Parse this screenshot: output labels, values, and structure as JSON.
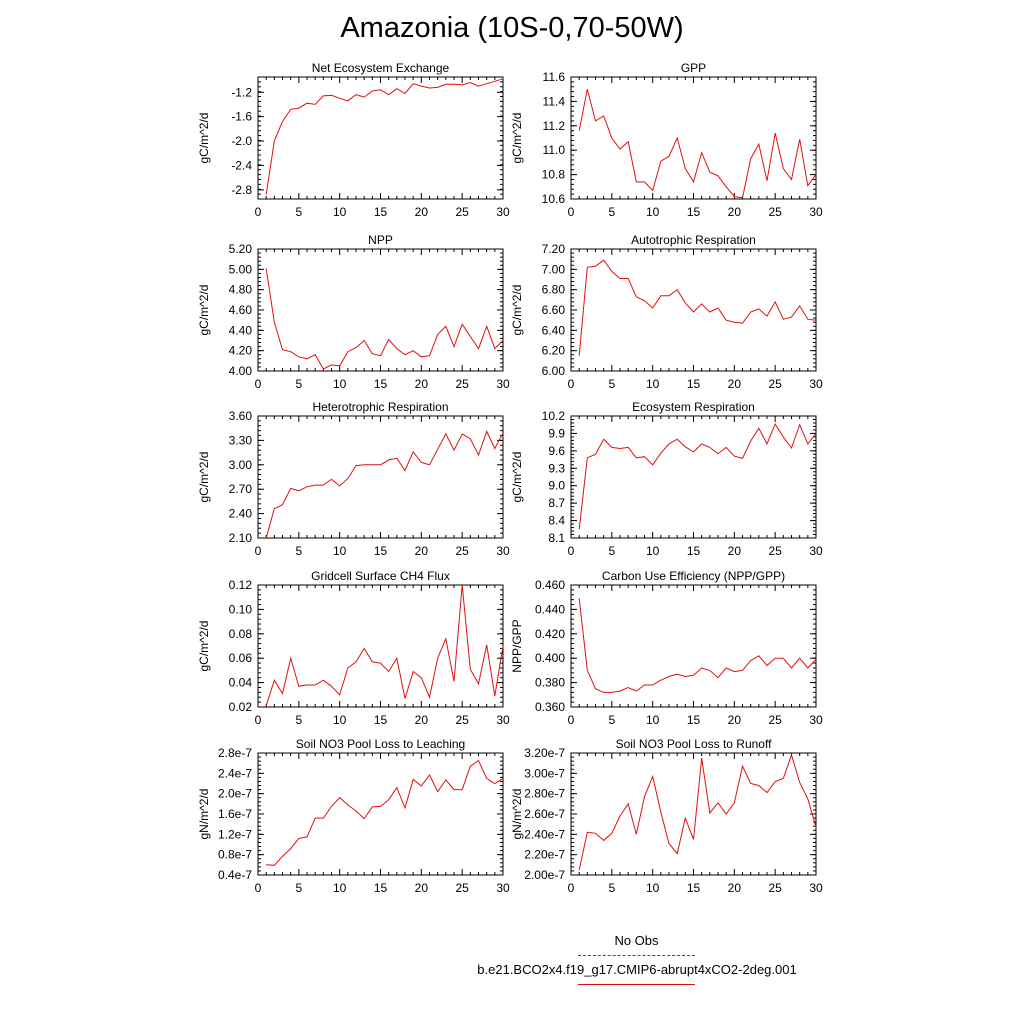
{
  "title": "Amazonia (10S-0,70-50W)",
  "legend": {
    "obs_label": "No Obs",
    "obs_color": "#3b3bd6",
    "case_label": "b.e21.BCO2x4.f19_g17.CMIP6-abrupt4xCO2-2deg.001",
    "case_color": "#e01010"
  },
  "chart_data": [
    {
      "type": "line",
      "title": "Net Ecosystem Exchange",
      "xlabel": "",
      "ylabel": "gC/m^2/d",
      "xlim": [
        0,
        30
      ],
      "ylim": [
        -2.95,
        -0.95
      ],
      "xticks": [
        0,
        5,
        10,
        15,
        20,
        25,
        30
      ],
      "yticks": [
        -2.8,
        -2.4,
        -2.0,
        -1.6,
        -1.2
      ],
      "ytick_labels": [
        "-2.8",
        "-2.4",
        "-2.0",
        "-1.6",
        "-1.2"
      ],
      "grid": false,
      "x": [
        1,
        2,
        3,
        4,
        5,
        6,
        7,
        8,
        9,
        10,
        11,
        12,
        13,
        14,
        15,
        16,
        17,
        18,
        19,
        20,
        21,
        22,
        23,
        24,
        25,
        26,
        27,
        28,
        29,
        30
      ],
      "series": [
        {
          "values": [
            -2.88,
            -2.0,
            -1.68,
            -1.48,
            -1.46,
            -1.38,
            -1.4,
            -1.26,
            -1.25,
            -1.3,
            -1.34,
            -1.24,
            -1.28,
            -1.18,
            -1.16,
            -1.24,
            -1.14,
            -1.22,
            -1.06,
            -1.1,
            -1.13,
            -1.12,
            -1.07,
            -1.07,
            -1.08,
            -1.04,
            -1.1,
            -1.06,
            -1.02,
            -0.98
          ]
        }
      ]
    },
    {
      "type": "line",
      "title": "GPP",
      "xlabel": "",
      "ylabel": "gC/m^2/d",
      "xlim": [
        0,
        30
      ],
      "ylim": [
        10.6,
        11.6
      ],
      "xticks": [
        0,
        5,
        10,
        15,
        20,
        25,
        30
      ],
      "yticks": [
        10.6,
        10.8,
        11.0,
        11.2,
        11.4,
        11.6
      ],
      "ytick_labels": [
        "10.6",
        "10.8",
        "11.0",
        "11.2",
        "11.4",
        "11.6"
      ],
      "grid": false,
      "x": [
        1,
        2,
        3,
        4,
        5,
        6,
        7,
        8,
        9,
        10,
        11,
        12,
        13,
        14,
        15,
        16,
        17,
        18,
        19,
        20,
        21,
        22,
        23,
        24,
        25,
        26,
        27,
        28,
        29,
        30
      ],
      "series": [
        {
          "values": [
            11.16,
            11.5,
            11.24,
            11.28,
            11.1,
            11.01,
            11.07,
            10.74,
            10.74,
            10.67,
            10.91,
            10.95,
            11.1,
            10.85,
            10.74,
            10.98,
            10.82,
            10.79,
            10.7,
            10.62,
            10.61,
            10.93,
            11.05,
            10.75,
            11.14,
            10.85,
            10.76,
            11.09,
            10.71,
            10.8
          ]
        }
      ]
    },
    {
      "type": "line",
      "title": "NPP",
      "xlabel": "",
      "ylabel": "gC/m^2/d",
      "xlim": [
        0,
        30
      ],
      "ylim": [
        4.0,
        5.2
      ],
      "xticks": [
        0,
        5,
        10,
        15,
        20,
        25,
        30
      ],
      "yticks": [
        4.0,
        4.2,
        4.4,
        4.6,
        4.8,
        5.0,
        5.2
      ],
      "ytick_labels": [
        "4.00",
        "4.20",
        "4.40",
        "4.60",
        "4.80",
        "5.00",
        "5.20"
      ],
      "grid": false,
      "x": [
        1,
        2,
        3,
        4,
        5,
        6,
        7,
        8,
        9,
        10,
        11,
        12,
        13,
        14,
        15,
        16,
        17,
        18,
        19,
        20,
        21,
        22,
        23,
        24,
        25,
        26,
        27,
        28,
        29,
        30
      ],
      "series": [
        {
          "values": [
            5.01,
            4.48,
            4.21,
            4.19,
            4.14,
            4.12,
            4.16,
            4.02,
            4.06,
            4.05,
            4.19,
            4.23,
            4.3,
            4.17,
            4.15,
            4.31,
            4.22,
            4.16,
            4.2,
            4.14,
            4.15,
            4.36,
            4.44,
            4.24,
            4.46,
            4.34,
            4.22,
            4.44,
            4.22,
            4.3
          ]
        }
      ]
    },
    {
      "type": "line",
      "title": "Autotrophic Respiration",
      "xlabel": "",
      "ylabel": "gC/m^2/d",
      "xlim": [
        0,
        30
      ],
      "ylim": [
        6.0,
        7.2
      ],
      "xticks": [
        0,
        5,
        10,
        15,
        20,
        25,
        30
      ],
      "yticks": [
        6.0,
        6.2,
        6.4,
        6.6,
        6.8,
        7.0,
        7.2
      ],
      "ytick_labels": [
        "6.00",
        "6.20",
        "6.40",
        "6.60",
        "6.80",
        "7.00",
        "7.20"
      ],
      "grid": false,
      "x": [
        1,
        2,
        3,
        4,
        5,
        6,
        7,
        8,
        9,
        10,
        11,
        12,
        13,
        14,
        15,
        16,
        17,
        18,
        19,
        20,
        21,
        22,
        23,
        24,
        25,
        26,
        27,
        28,
        29,
        30
      ],
      "series": [
        {
          "values": [
            6.15,
            7.02,
            7.03,
            7.09,
            6.98,
            6.91,
            6.91,
            6.73,
            6.69,
            6.62,
            6.74,
            6.74,
            6.8,
            6.67,
            6.58,
            6.66,
            6.58,
            6.62,
            6.5,
            6.48,
            6.47,
            6.58,
            6.61,
            6.54,
            6.68,
            6.51,
            6.53,
            6.64,
            6.51,
            6.5
          ]
        }
      ]
    },
    {
      "type": "line",
      "title": "Heterotrophic Respiration",
      "xlabel": "",
      "ylabel": "gC/m^2/d",
      "xlim": [
        0,
        30
      ],
      "ylim": [
        2.1,
        3.6
      ],
      "xticks": [
        0,
        5,
        10,
        15,
        20,
        25,
        30
      ],
      "yticks": [
        2.1,
        2.4,
        2.7,
        3.0,
        3.3,
        3.6
      ],
      "ytick_labels": [
        "2.10",
        "2.40",
        "2.70",
        "3.00",
        "3.30",
        "3.60"
      ],
      "grid": false,
      "x": [
        1,
        2,
        3,
        4,
        5,
        6,
        7,
        8,
        9,
        10,
        11,
        12,
        13,
        14,
        15,
        16,
        17,
        18,
        19,
        20,
        21,
        22,
        23,
        24,
        25,
        26,
        27,
        28,
        29,
        30
      ],
      "series": [
        {
          "values": [
            2.1,
            2.46,
            2.51,
            2.71,
            2.68,
            2.73,
            2.75,
            2.75,
            2.82,
            2.74,
            2.83,
            2.99,
            3.0,
            3.0,
            3.0,
            3.06,
            3.08,
            2.93,
            3.16,
            3.03,
            3.0,
            3.19,
            3.38,
            3.18,
            3.38,
            3.32,
            3.12,
            3.41,
            3.2,
            3.39
          ]
        }
      ]
    },
    {
      "type": "line",
      "title": "Ecosystem Respiration",
      "xlabel": "",
      "ylabel": "gC/m^2/d",
      "xlim": [
        0,
        30
      ],
      "ylim": [
        8.1,
        10.2
      ],
      "xticks": [
        0,
        5,
        10,
        15,
        20,
        25,
        30
      ],
      "yticks": [
        8.1,
        8.4,
        8.7,
        9.0,
        9.3,
        9.6,
        9.9,
        10.2
      ],
      "ytick_labels": [
        "8.1",
        "8.4",
        "8.7",
        "9.0",
        "9.3",
        "9.6",
        "9.9",
        "10.2"
      ],
      "grid": false,
      "x": [
        1,
        2,
        3,
        4,
        5,
        6,
        7,
        8,
        9,
        10,
        11,
        12,
        13,
        14,
        15,
        16,
        17,
        18,
        19,
        20,
        21,
        22,
        23,
        24,
        25,
        26,
        27,
        28,
        29,
        30
      ],
      "series": [
        {
          "values": [
            8.25,
            9.48,
            9.54,
            9.8,
            9.66,
            9.64,
            9.66,
            9.48,
            9.5,
            9.36,
            9.56,
            9.72,
            9.8,
            9.67,
            9.58,
            9.72,
            9.66,
            9.55,
            9.66,
            9.51,
            9.47,
            9.77,
            9.99,
            9.72,
            10.06,
            9.84,
            9.65,
            10.05,
            9.72,
            9.9
          ]
        }
      ]
    },
    {
      "type": "line",
      "title": "Gridcell Surface CH4 Flux",
      "xlabel": "",
      "ylabel": "gC/m^2/d",
      "xlim": [
        0,
        30
      ],
      "ylim": [
        0.02,
        0.12
      ],
      "xticks": [
        0,
        5,
        10,
        15,
        20,
        25,
        30
      ],
      "yticks": [
        0.02,
        0.04,
        0.06,
        0.08,
        0.1,
        0.12
      ],
      "ytick_labels": [
        "0.02",
        "0.04",
        "0.06",
        "0.08",
        "0.10",
        "0.12"
      ],
      "grid": false,
      "x": [
        1,
        2,
        3,
        4,
        5,
        6,
        7,
        8,
        9,
        10,
        11,
        12,
        13,
        14,
        15,
        16,
        17,
        18,
        19,
        20,
        21,
        22,
        23,
        24,
        25,
        26,
        27,
        28,
        29,
        30
      ],
      "series": [
        {
          "values": [
            0.021,
            0.042,
            0.031,
            0.06,
            0.037,
            0.038,
            0.038,
            0.042,
            0.037,
            0.03,
            0.052,
            0.057,
            0.068,
            0.057,
            0.056,
            0.049,
            0.06,
            0.027,
            0.049,
            0.044,
            0.028,
            0.06,
            0.076,
            0.041,
            0.12,
            0.051,
            0.039,
            0.071,
            0.029,
            0.07
          ]
        }
      ]
    },
    {
      "type": "line",
      "title": "Carbon Use Efficiency (NPP/GPP)",
      "xlabel": "",
      "ylabel": "NPP/GPP",
      "xlim": [
        0,
        30
      ],
      "ylim": [
        0.36,
        0.46
      ],
      "xticks": [
        0,
        5,
        10,
        15,
        20,
        25,
        30
      ],
      "yticks": [
        0.36,
        0.38,
        0.4,
        0.42,
        0.44,
        0.46
      ],
      "ytick_labels": [
        "0.360",
        "0.380",
        "0.400",
        "0.420",
        "0.440",
        "0.460"
      ],
      "grid": false,
      "x": [
        1,
        2,
        3,
        4,
        5,
        6,
        7,
        8,
        9,
        10,
        11,
        12,
        13,
        14,
        15,
        16,
        17,
        18,
        19,
        20,
        21,
        22,
        23,
        24,
        25,
        26,
        27,
        28,
        29,
        30
      ],
      "series": [
        {
          "values": [
            0.449,
            0.39,
            0.375,
            0.372,
            0.372,
            0.373,
            0.376,
            0.373,
            0.378,
            0.378,
            0.382,
            0.385,
            0.387,
            0.385,
            0.386,
            0.392,
            0.39,
            0.384,
            0.392,
            0.389,
            0.39,
            0.398,
            0.402,
            0.394,
            0.4,
            0.4,
            0.392,
            0.4,
            0.392,
            0.399
          ]
        }
      ]
    },
    {
      "type": "line",
      "title": "Soil NO3 Pool Loss to Leaching",
      "xlabel": "",
      "ylabel": "gN/m^2/d",
      "xlim": [
        0,
        30
      ],
      "ylim": [
        4e-08,
        2.8e-07
      ],
      "xticks": [
        0,
        5,
        10,
        15,
        20,
        25,
        30
      ],
      "yticks": [
        4e-08,
        8e-08,
        1.2e-07,
        1.6e-07,
        2e-07,
        2.4e-07,
        2.8e-07
      ],
      "ytick_labels": [
        "0.4e-7",
        "0.8e-7",
        "1.2e-7",
        "1.6e-7",
        "2.0e-7",
        "2.4e-7",
        "2.8e-7"
      ],
      "grid": false,
      "x": [
        1,
        2,
        3,
        4,
        5,
        6,
        7,
        8,
        9,
        10,
        11,
        12,
        13,
        14,
        15,
        16,
        17,
        18,
        19,
        20,
        21,
        22,
        23,
        24,
        25,
        26,
        27,
        28,
        29,
        30
      ],
      "series": [
        {
          "values": [
            6e-08,
            5.9e-08,
            7.7e-08,
            9.2e-08,
            1.12e-07,
            1.15e-07,
            1.52e-07,
            1.52e-07,
            1.75e-07,
            1.92e-07,
            1.78e-07,
            1.66e-07,
            1.51e-07,
            1.74e-07,
            1.75e-07,
            1.88e-07,
            2.12e-07,
            1.72e-07,
            2.28e-07,
            2.15e-07,
            2.37e-07,
            2.04e-07,
            2.27e-07,
            2.08e-07,
            2.08e-07,
            2.54e-07,
            2.65e-07,
            2.3e-07,
            2.2e-07,
            2.3e-07
          ]
        }
      ]
    },
    {
      "type": "line",
      "title": "Soil NO3 Pool Loss to Runoff",
      "xlabel": "",
      "ylabel": "gN/m^2/d",
      "xlim": [
        0,
        30
      ],
      "ylim": [
        2e-07,
        3.2e-07
      ],
      "xticks": [
        0,
        5,
        10,
        15,
        20,
        25,
        30
      ],
      "yticks": [
        2e-07,
        2.2e-07,
        2.4e-07,
        2.6e-07,
        2.8e-07,
        3e-07,
        3.2e-07
      ],
      "ytick_labels": [
        "2.00e-7",
        "2.20e-7",
        "2.40e-7",
        "2.60e-7",
        "2.80e-7",
        "3.00e-7",
        "3.20e-7"
      ],
      "grid": false,
      "x": [
        1,
        2,
        3,
        4,
        5,
        6,
        7,
        8,
        9,
        10,
        11,
        12,
        13,
        14,
        15,
        16,
        17,
        18,
        19,
        20,
        21,
        22,
        23,
        24,
        25,
        26,
        27,
        28,
        29,
        30
      ],
      "series": [
        {
          "values": [
            2.05e-07,
            2.42e-07,
            2.41e-07,
            2.34e-07,
            2.41e-07,
            2.58e-07,
            2.7e-07,
            2.4e-07,
            2.77e-07,
            2.97e-07,
            2.62e-07,
            2.31e-07,
            2.21e-07,
            2.56e-07,
            2.35e-07,
            3.15e-07,
            2.61e-07,
            2.71e-07,
            2.6e-07,
            2.71e-07,
            3.07e-07,
            2.9e-07,
            2.88e-07,
            2.81e-07,
            2.92e-07,
            2.95e-07,
            3.18e-07,
            2.91e-07,
            2.75e-07,
            2.47e-07
          ]
        }
      ]
    }
  ]
}
